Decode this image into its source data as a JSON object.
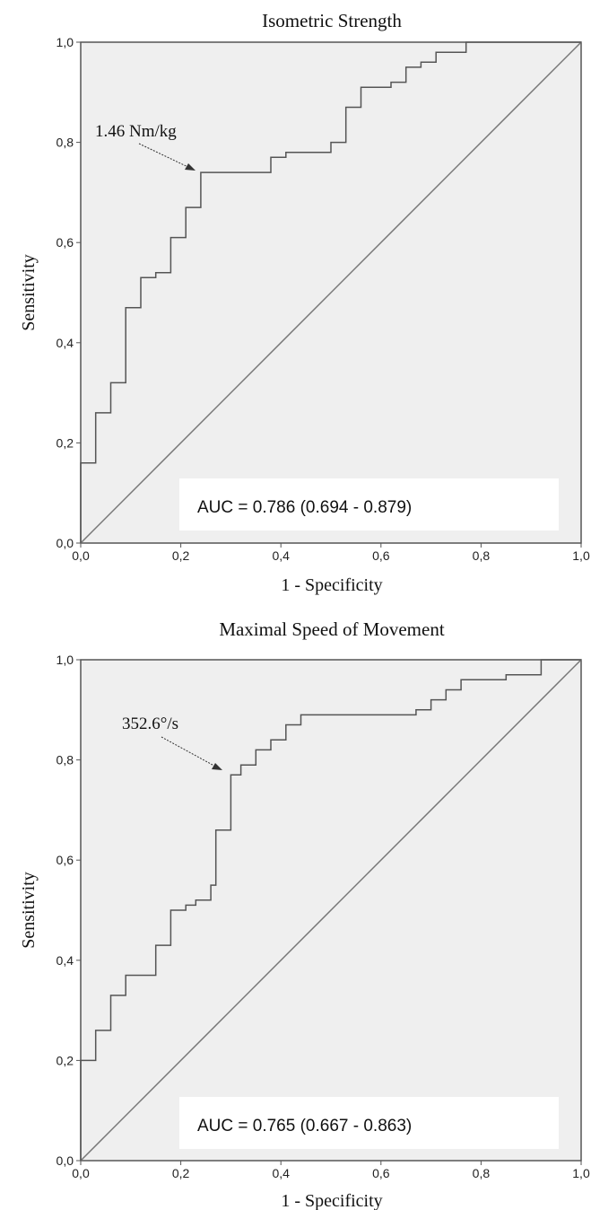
{
  "chart_data": [
    {
      "type": "line",
      "title": "Isometric Strength",
      "xlabel": "1 - Specificity",
      "ylabel": "Sensitivity",
      "xlim": [
        0,
        1
      ],
      "ylim": [
        0,
        1
      ],
      "x_ticks": [
        "0,0",
        "0,2",
        "0,4",
        "0,6",
        "0,8",
        "1,0"
      ],
      "y_ticks": [
        "0,0",
        "0,2",
        "0,4",
        "0,6",
        "0,8",
        "1,0"
      ],
      "annotation": {
        "text": "1.46 Nm/kg",
        "point": [
          0.24,
          0.74
        ]
      },
      "auc_text": "AUC = 0.786 (0.694 - 0.879)",
      "colors": {
        "plot_bg": "#efefef",
        "curve": "#555555",
        "diagonal": "#777777"
      },
      "series": [
        {
          "points": [
            [
              0,
              0
            ],
            [
              0,
              0.16
            ],
            [
              0.03,
              0.16
            ],
            [
              0.03,
              0.26
            ],
            [
              0.06,
              0.26
            ],
            [
              0.06,
              0.32
            ],
            [
              0.09,
              0.32
            ],
            [
              0.09,
              0.47
            ],
            [
              0.12,
              0.47
            ],
            [
              0.12,
              0.53
            ],
            [
              0.15,
              0.53
            ],
            [
              0.15,
              0.54
            ],
            [
              0.18,
              0.54
            ],
            [
              0.18,
              0.61
            ],
            [
              0.21,
              0.61
            ],
            [
              0.21,
              0.67
            ],
            [
              0.24,
              0.67
            ],
            [
              0.24,
              0.74
            ],
            [
              0.38,
              0.74
            ],
            [
              0.38,
              0.77
            ],
            [
              0.41,
              0.77
            ],
            [
              0.41,
              0.78
            ],
            [
              0.5,
              0.78
            ],
            [
              0.5,
              0.8
            ],
            [
              0.53,
              0.8
            ],
            [
              0.53,
              0.87
            ],
            [
              0.56,
              0.87
            ],
            [
              0.56,
              0.91
            ],
            [
              0.62,
              0.91
            ],
            [
              0.62,
              0.92
            ],
            [
              0.65,
              0.92
            ],
            [
              0.65,
              0.95
            ],
            [
              0.68,
              0.95
            ],
            [
              0.68,
              0.96
            ],
            [
              0.71,
              0.96
            ],
            [
              0.71,
              0.98
            ],
            [
              0.77,
              0.98
            ],
            [
              0.77,
              1.0
            ],
            [
              1.0,
              1.0
            ]
          ]
        },
        {
          "points": [
            [
              0,
              0
            ],
            [
              1,
              1
            ]
          ]
        }
      ]
    },
    {
      "type": "line",
      "title": "Maximal Speed of Movement",
      "xlabel": "1 - Specificity",
      "ylabel": "Sensitivity",
      "xlim": [
        0,
        1
      ],
      "ylim": [
        0,
        1
      ],
      "x_ticks": [
        "0,0",
        "0,2",
        "0,4",
        "0,6",
        "0,8",
        "1,0"
      ],
      "y_ticks": [
        "0,0",
        "0,2",
        "0,4",
        "0,6",
        "0,8",
        "1,0"
      ],
      "annotation": {
        "text": "352.6°/s",
        "point": [
          0.3,
          0.77
        ]
      },
      "auc_text": "AUC = 0.765 (0.667 - 0.863)",
      "colors": {
        "plot_bg": "#efefef",
        "curve": "#555555",
        "diagonal": "#777777"
      },
      "series": [
        {
          "points": [
            [
              0,
              0
            ],
            [
              0,
              0.2
            ],
            [
              0.03,
              0.2
            ],
            [
              0.03,
              0.26
            ],
            [
              0.06,
              0.26
            ],
            [
              0.06,
              0.33
            ],
            [
              0.09,
              0.33
            ],
            [
              0.09,
              0.37
            ],
            [
              0.15,
              0.37
            ],
            [
              0.15,
              0.43
            ],
            [
              0.18,
              0.43
            ],
            [
              0.18,
              0.5
            ],
            [
              0.21,
              0.5
            ],
            [
              0.21,
              0.51
            ],
            [
              0.23,
              0.51
            ],
            [
              0.23,
              0.52
            ],
            [
              0.26,
              0.52
            ],
            [
              0.26,
              0.55
            ],
            [
              0.27,
              0.55
            ],
            [
              0.27,
              0.66
            ],
            [
              0.3,
              0.66
            ],
            [
              0.3,
              0.77
            ],
            [
              0.32,
              0.77
            ],
            [
              0.32,
              0.79
            ],
            [
              0.35,
              0.79
            ],
            [
              0.35,
              0.82
            ],
            [
              0.38,
              0.82
            ],
            [
              0.38,
              0.84
            ],
            [
              0.41,
              0.84
            ],
            [
              0.41,
              0.87
            ],
            [
              0.44,
              0.87
            ],
            [
              0.44,
              0.89
            ],
            [
              0.67,
              0.89
            ],
            [
              0.67,
              0.9
            ],
            [
              0.7,
              0.9
            ],
            [
              0.7,
              0.92
            ],
            [
              0.73,
              0.92
            ],
            [
              0.73,
              0.94
            ],
            [
              0.76,
              0.94
            ],
            [
              0.76,
              0.96
            ],
            [
              0.85,
              0.96
            ],
            [
              0.85,
              0.97
            ],
            [
              0.92,
              0.97
            ],
            [
              0.92,
              1.0
            ],
            [
              1.0,
              1.0
            ]
          ]
        },
        {
          "points": [
            [
              0,
              0
            ],
            [
              1,
              1
            ]
          ]
        }
      ]
    }
  ]
}
